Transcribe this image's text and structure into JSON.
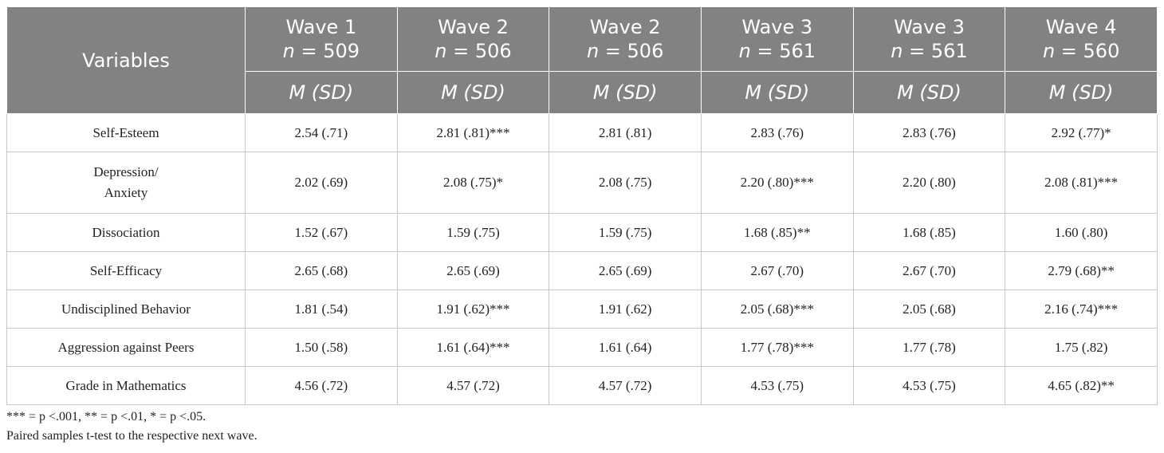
{
  "table": {
    "header": {
      "variables": "Variables",
      "columns": [
        {
          "wave": "Wave 1",
          "n_symbol": "n",
          "n_value": "= 509",
          "stat": "M (SD)"
        },
        {
          "wave": "Wave 2",
          "n_symbol": "n",
          "n_value": "= 506",
          "stat": "M (SD)"
        },
        {
          "wave": "Wave 2",
          "n_symbol": "n",
          "n_value": "= 506",
          "stat": "M (SD)"
        },
        {
          "wave": "Wave 3",
          "n_symbol": "n",
          "n_value": "= 561",
          "stat": "M (SD)"
        },
        {
          "wave": "Wave 3",
          "n_symbol": "n",
          "n_value": "= 561",
          "stat": "M (SD)"
        },
        {
          "wave": "Wave 4",
          "n_symbol": "n",
          "n_value": "= 560",
          "stat": "M (SD)"
        }
      ]
    },
    "rows": [
      {
        "label": "Self-Esteem",
        "cells": [
          "2.54 (.71)",
          "2.81 (.81)***",
          "2.81 (.81)",
          "2.83 (.76)",
          "2.83 (.76)",
          "2.92 (.77)*"
        ]
      },
      {
        "label": "Depression/\nAnxiety",
        "cells": [
          "2.02 (.69)",
          "2.08 (.75)*",
          "2.08 (.75)",
          "2.20 (.80)***",
          "2.20 (.80)",
          "2.08 (.81)***"
        ]
      },
      {
        "label": "Dissociation",
        "cells": [
          "1.52 (.67)",
          "1.59 (.75)",
          "1.59 (.75)",
          "1.68 (.85)**",
          "1.68 (.85)",
          "1.60 (.80)"
        ]
      },
      {
        "label": "Self-Efficacy",
        "cells": [
          "2.65 (.68)",
          "2.65 (.69)",
          "2.65 (.69)",
          "2.67 (.70)",
          "2.67 (.70)",
          "2.79 (.68)**"
        ]
      },
      {
        "label": "Undisciplined Behavior",
        "cells": [
          "1.81 (.54)",
          "1.91 (.62)***",
          "1.91 (.62)",
          "2.05 (.68)***",
          "2.05 (.68)",
          "2.16 (.74)***"
        ]
      },
      {
        "label": "Aggression against Peers",
        "cells": [
          "1.50 (.58)",
          "1.61 (.64)***",
          "1.61 (.64)",
          "1.77 (.78)***",
          "1.77 (.78)",
          "1.75 (.82)"
        ]
      },
      {
        "label": "Grade in Mathematics",
        "cells": [
          "4.56 (.72)",
          "4.57 (.72)",
          "4.57 (.72)",
          "4.53 (.75)",
          "4.53 (.75)",
          "4.65 (.82)**"
        ]
      }
    ],
    "footnotes": [
      "*** = p <.001, ** = p <.01, * = p <.05.",
      "Paired samples t-test to the respective next wave."
    ]
  }
}
